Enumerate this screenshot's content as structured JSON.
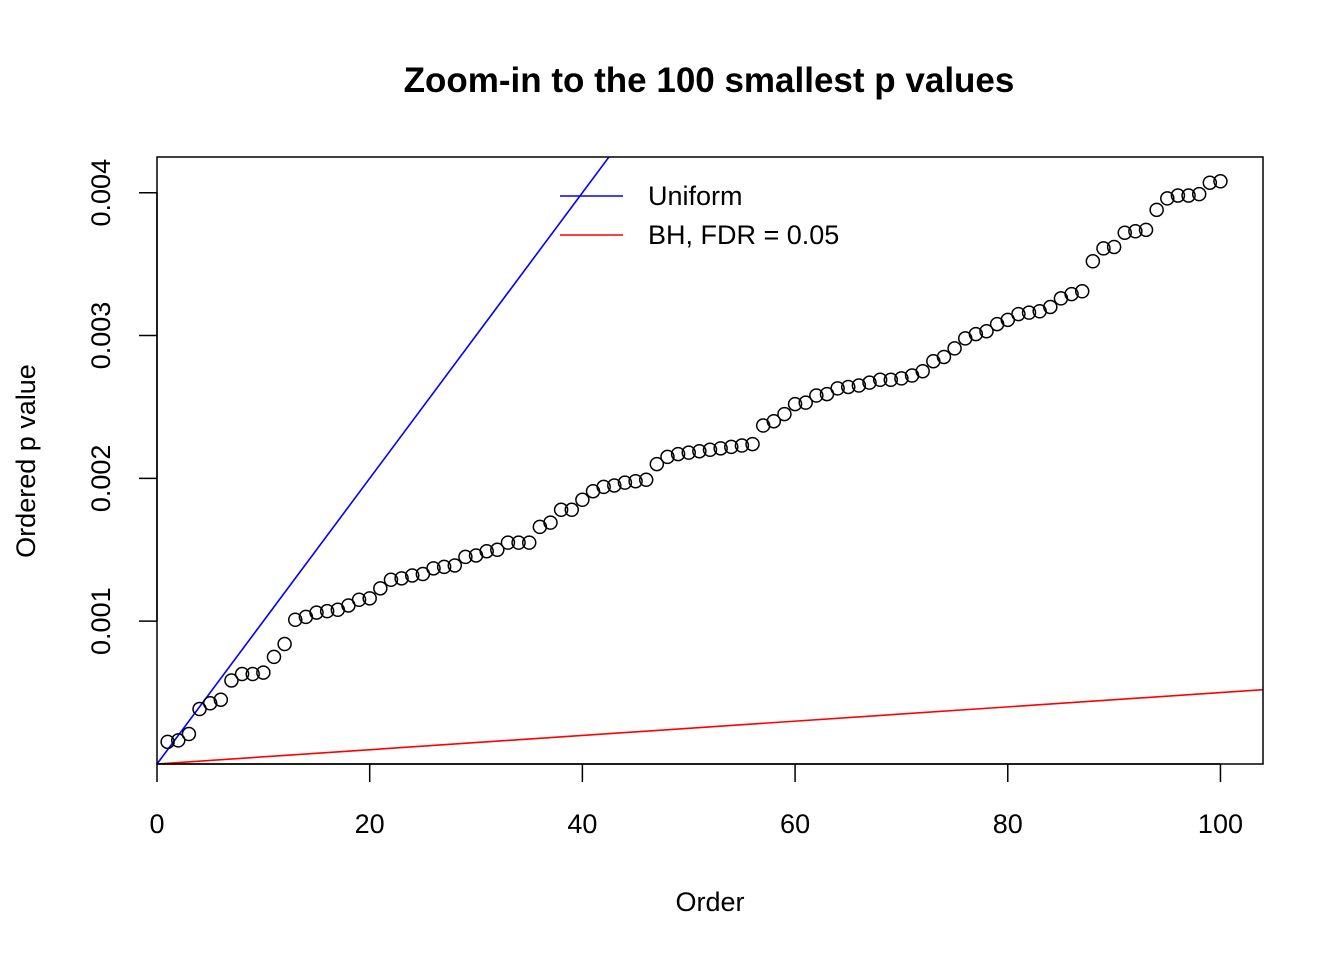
{
  "chart_data": {
    "type": "scatter",
    "title": "Zoom-in to the 100 smallest p values",
    "xlabel": "Order",
    "ylabel": "Ordered p value",
    "xlim": [
      0,
      104
    ],
    "ylim": [
      0.0,
      0.00425
    ],
    "x_ticks": [
      0,
      20,
      40,
      60,
      80,
      100
    ],
    "x_tick_labels": [
      "0",
      "20",
      "40",
      "60",
      "80",
      "100"
    ],
    "y_ticks": [
      0.001,
      0.002,
      0.003,
      0.004
    ],
    "y_tick_labels": [
      "0.001",
      "0.002",
      "0.003",
      "0.004"
    ],
    "grid": false,
    "legend_position": "top-center",
    "series": [
      {
        "name": "",
        "kind": "points",
        "marker": "open-circle",
        "color": "#000000",
        "x": [
          1,
          2,
          3,
          4,
          5,
          6,
          7,
          8,
          9,
          10,
          11,
          12,
          13,
          14,
          15,
          16,
          17,
          18,
          19,
          20,
          21,
          22,
          23,
          24,
          25,
          26,
          27,
          28,
          29,
          30,
          31,
          32,
          33,
          34,
          35,
          36,
          37,
          38,
          39,
          40,
          41,
          42,
          43,
          44,
          45,
          46,
          47,
          48,
          49,
          50,
          51,
          52,
          53,
          54,
          55,
          56,
          57,
          58,
          59,
          60,
          61,
          62,
          63,
          64,
          65,
          66,
          67,
          68,
          69,
          70,
          71,
          72,
          73,
          74,
          75,
          76,
          77,
          78,
          79,
          80,
          81,
          82,
          83,
          84,
          85,
          86,
          87,
          88,
          89,
          90,
          91,
          92,
          93,
          94,
          95,
          96,
          97,
          98,
          99,
          100
        ],
        "y": [
          0.000155,
          0.000165,
          0.00021,
          0.000385,
          0.000425,
          0.00045,
          0.000585,
          0.00063,
          0.00063,
          0.00064,
          0.00075,
          0.00084,
          0.00101,
          0.00103,
          0.00106,
          0.00107,
          0.00108,
          0.00111,
          0.00115,
          0.00116,
          0.00123,
          0.00129,
          0.0013,
          0.00132,
          0.00133,
          0.00137,
          0.00138,
          0.00139,
          0.00145,
          0.00146,
          0.00149,
          0.0015,
          0.00155,
          0.00155,
          0.00155,
          0.00166,
          0.00169,
          0.00178,
          0.00178,
          0.00185,
          0.00191,
          0.00194,
          0.00195,
          0.00197,
          0.00198,
          0.00199,
          0.0021,
          0.00215,
          0.00217,
          0.00218,
          0.00219,
          0.0022,
          0.00221,
          0.00222,
          0.00223,
          0.00224,
          0.00237,
          0.0024,
          0.00245,
          0.00252,
          0.00253,
          0.00258,
          0.00259,
          0.00263,
          0.00264,
          0.00265,
          0.00267,
          0.00269,
          0.00269,
          0.0027,
          0.00272,
          0.00275,
          0.00282,
          0.00285,
          0.00291,
          0.00298,
          0.00301,
          0.00303,
          0.00308,
          0.00311,
          0.00315,
          0.00316,
          0.00317,
          0.0032,
          0.00326,
          0.00329,
          0.00331,
          0.00352,
          0.00361,
          0.00362,
          0.00372,
          0.00373,
          0.00374,
          0.00388,
          0.00396,
          0.00398,
          0.00398,
          0.00399,
          0.00407,
          0.00408
        ]
      },
      {
        "name": "Uniform",
        "kind": "line",
        "color": "#0000ff",
        "intercept": 0.0,
        "slope": 0.0001
      },
      {
        "name": "BH, FDR = 0.05",
        "kind": "line",
        "color": "#ff0000",
        "intercept": 0.0,
        "slope": 5e-06
      }
    ]
  }
}
